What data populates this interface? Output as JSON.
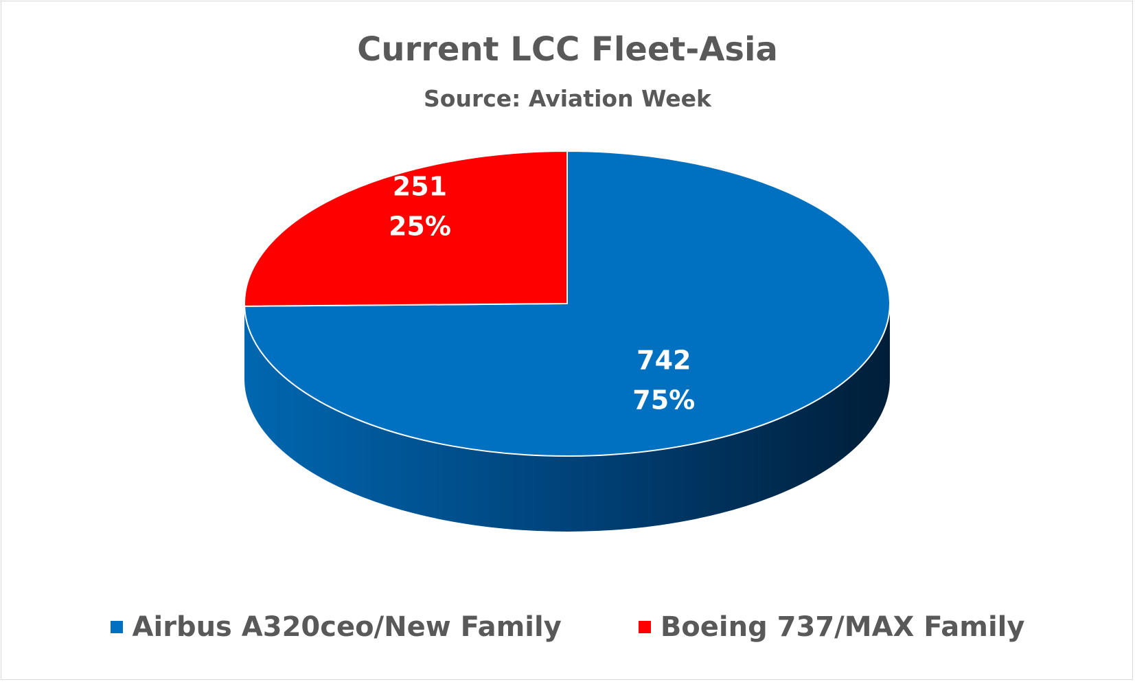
{
  "chart_data": {
    "type": "pie",
    "title": "Current LCC Fleet-Asia",
    "subtitle": "Source: Aviation Week",
    "series": [
      {
        "name": "Airbus A320ceo/New Family",
        "value": 742,
        "percent": "75%",
        "color": "#0070C0"
      },
      {
        "name": "Boeing 737/MAX Family",
        "value": 251,
        "percent": "25%",
        "color": "#FF0000"
      }
    ],
    "legend_position": "bottom",
    "style": "3d"
  }
}
